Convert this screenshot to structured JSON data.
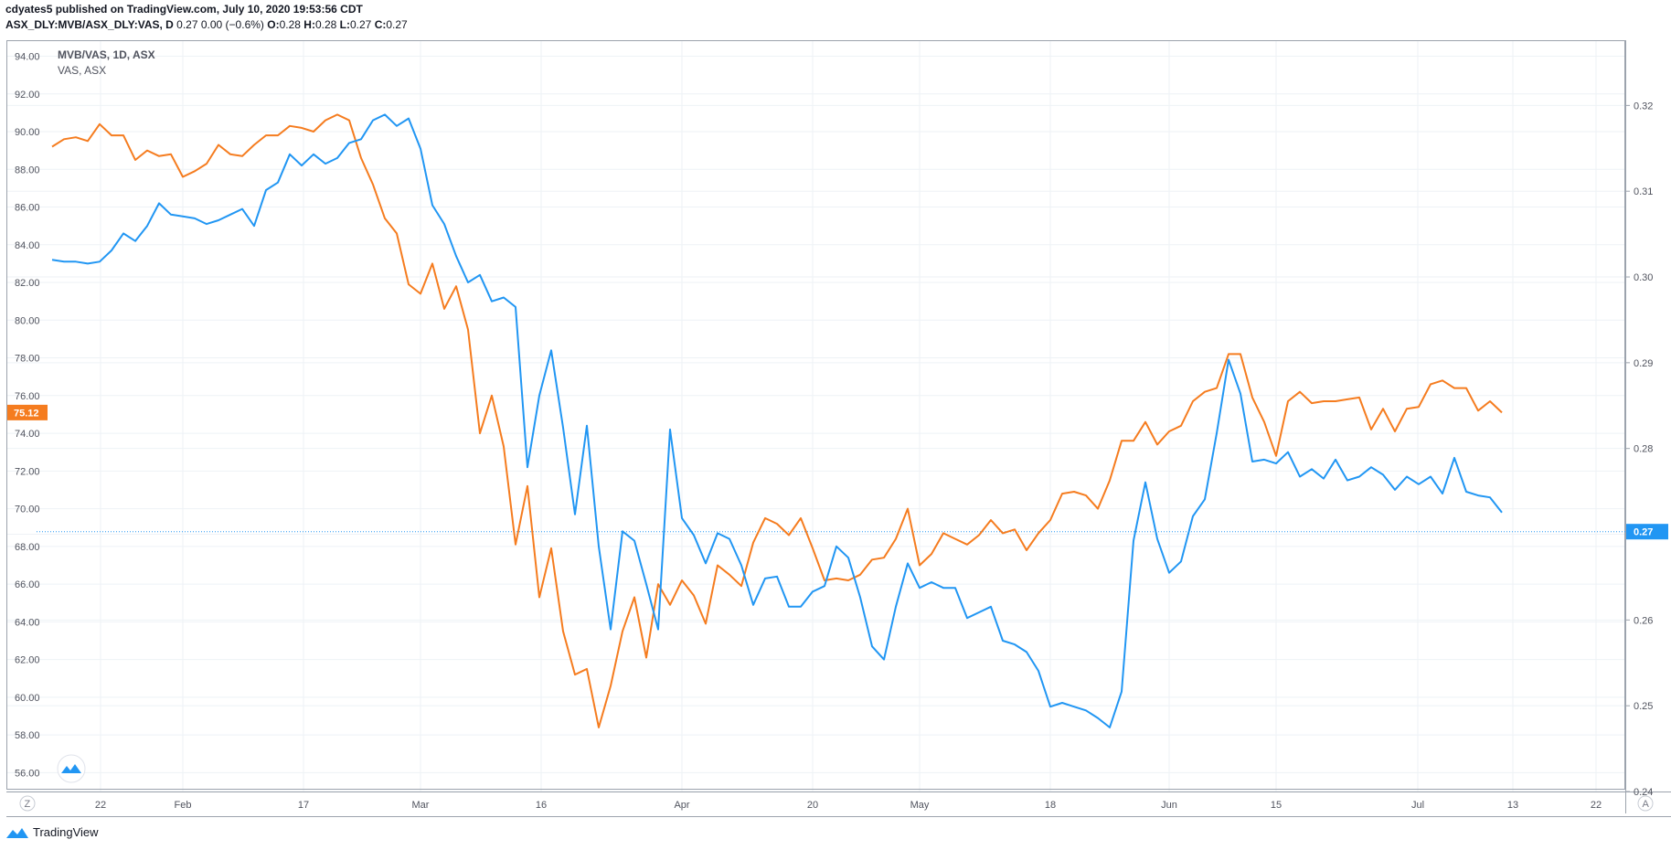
{
  "header": {
    "publisher_line": "cdyates5 published on TradingView.com, July 10, 2020 19:53:56 CDT",
    "symbol": "ASX_DLY:MVB/ASX_DLY:VAS, D",
    "quote": "0.27 0.00 (−0.6%)",
    "o_label": "O:",
    "o_value": "0.28",
    "h_label": "H:",
    "h_value": "0.28",
    "l_label": "L:",
    "l_value": "0.27",
    "c_label": "C:",
    "c_value": "0.27"
  },
  "footer": {
    "brand": "TradingView"
  },
  "buttons": {
    "z": "Z",
    "a": "A"
  },
  "colors": {
    "orange": "#f57c1f",
    "blue": "#2196f3",
    "grid": "#eef2f6",
    "axis_text": "#50535e"
  },
  "chart_data": {
    "type": "line",
    "legend": [
      {
        "label": "MVB/VAS, 1D, ASX",
        "bold": true
      },
      {
        "label": "VAS, ASX",
        "bold": false
      }
    ],
    "left_axis": {
      "ticks": [
        "94.00",
        "92.00",
        "90.00",
        "88.00",
        "86.00",
        "84.00",
        "82.00",
        "80.00",
        "78.00",
        "76.00",
        "74.00",
        "72.00",
        "70.00",
        "68.00",
        "66.00",
        "64.00",
        "62.00",
        "60.00",
        "58.00",
        "56.00"
      ],
      "range": [
        55,
        94.8
      ],
      "last_value_label": "75.12"
    },
    "right_axis": {
      "ticks": [
        "0.32",
        "0.31",
        "0.30",
        "0.29",
        "0.28",
        "0.27",
        "0.26",
        "0.25",
        "0.24"
      ],
      "range": [
        0.24,
        0.3275
      ],
      "last_value_label": "0.27",
      "last_value": 0.2703
    },
    "x_ticks": [
      "22",
      "Feb",
      "17",
      "Mar",
      "16",
      "Apr",
      "20",
      "May",
      "18",
      "Jun",
      "15",
      "Jul",
      "13",
      "22"
    ],
    "series": [
      {
        "name": "VAS, ASX",
        "color": "orange",
        "axis": "left",
        "values": [
          89.2,
          89.6,
          89.7,
          89.5,
          90.4,
          89.8,
          89.8,
          88.5,
          89.0,
          88.7,
          88.8,
          87.6,
          87.9,
          88.3,
          89.3,
          88.8,
          88.7,
          89.3,
          89.8,
          89.8,
          90.3,
          90.2,
          90.0,
          90.6,
          90.9,
          90.6,
          88.6,
          87.2,
          85.4,
          84.6,
          81.9,
          81.4,
          83.0,
          80.6,
          81.8,
          79.5,
          74.0,
          76.0,
          73.3,
          68.1,
          71.2,
          65.3,
          67.9,
          63.5,
          61.2,
          61.5,
          58.4,
          60.6,
          63.5,
          65.3,
          62.1,
          66.0,
          64.9,
          66.2,
          65.4,
          63.9,
          67.0,
          66.5,
          65.9,
          68.2,
          69.5,
          69.2,
          68.6,
          69.5,
          67.9,
          66.2,
          66.3,
          66.2,
          66.5,
          67.3,
          67.4,
          68.4,
          70.0,
          67.0,
          67.6,
          68.7,
          68.4,
          68.1,
          68.6,
          69.4,
          68.7,
          68.9,
          67.8,
          68.7,
          69.4,
          70.8,
          70.9,
          70.7,
          70.0,
          71.5,
          73.6,
          73.6,
          74.6,
          73.4,
          74.1,
          74.4,
          75.7,
          76.2,
          76.4,
          78.2,
          78.2,
          75.9,
          74.6,
          72.8,
          75.7,
          76.2,
          75.6,
          75.7,
          75.7,
          75.8,
          75.9,
          74.2,
          75.3,
          74.1,
          75.3,
          75.4,
          76.6,
          76.8,
          76.4,
          76.4,
          75.2,
          75.7,
          75.1
        ]
      },
      {
        "name": "MVB/VAS, 1D, ASX",
        "color": "blue",
        "axis": "left",
        "values": [
          83.2,
          83.1,
          83.1,
          83.0,
          83.1,
          83.7,
          84.6,
          84.2,
          85.0,
          86.2,
          85.6,
          85.5,
          85.4,
          85.1,
          85.3,
          85.6,
          85.9,
          85.0,
          86.9,
          87.3,
          88.8,
          88.2,
          88.8,
          88.3,
          88.6,
          89.4,
          89.6,
          90.6,
          90.9,
          90.3,
          90.7,
          89.1,
          86.1,
          85.1,
          83.4,
          82.0,
          82.4,
          81.0,
          81.2,
          80.7,
          72.2,
          76.0,
          78.4,
          74.3,
          69.7,
          74.4,
          68.0,
          63.6,
          68.8,
          68.3,
          66.0,
          63.6,
          74.2,
          69.5,
          68.6,
          67.1,
          68.7,
          68.4,
          67.0,
          64.9,
          66.3,
          66.4,
          64.8,
          64.8,
          65.6,
          65.9,
          68.0,
          67.4,
          65.3,
          62.7,
          62.0,
          64.8,
          67.1,
          65.8,
          66.1,
          65.8,
          65.8,
          64.2,
          64.5,
          64.8,
          63.0,
          62.8,
          62.4,
          61.4,
          59.5,
          59.7,
          59.5,
          59.3,
          58.9,
          58.4,
          60.3,
          68.3,
          71.4,
          68.4,
          66.6,
          67.2,
          69.6,
          70.5,
          74.0,
          77.9,
          76.1,
          72.5,
          72.6,
          72.4,
          73.0,
          71.7,
          72.1,
          71.6,
          72.6,
          71.5,
          71.7,
          72.2,
          71.8,
          71.0,
          71.7,
          71.3,
          71.7,
          70.8,
          72.7,
          70.9,
          70.7,
          70.6,
          69.8
        ]
      }
    ]
  }
}
